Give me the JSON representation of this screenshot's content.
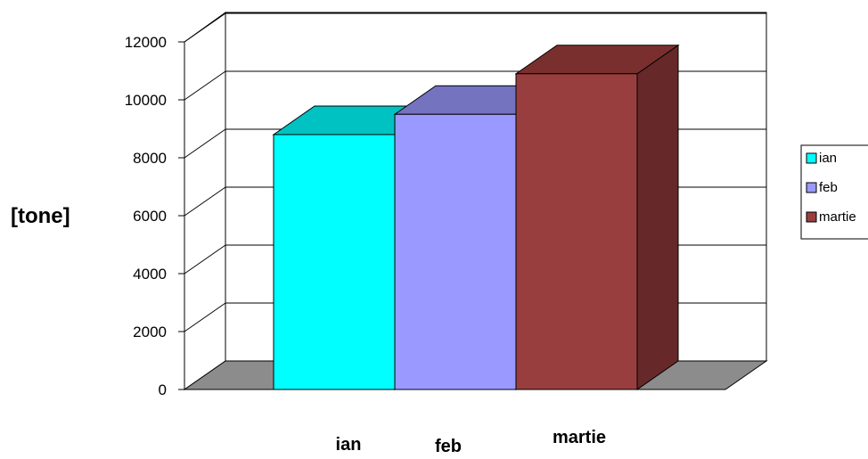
{
  "chart_data": {
    "type": "bar",
    "categories": [
      "ian",
      "feb",
      "martie"
    ],
    "values": [
      8800,
      9500,
      10900
    ],
    "ylabel": "[tone]",
    "ylim": [
      0,
      12000
    ],
    "yticks": [
      "0",
      "2000",
      "4000",
      "6000",
      "8000",
      "10000",
      "12000"
    ],
    "grid": true,
    "legend": {
      "position": "right",
      "entries": [
        "ian",
        "feb",
        "martie"
      ]
    },
    "colors": {
      "front": [
        "#00ffff",
        "#9999ff",
        "#993e3e"
      ],
      "top": [
        "#00c2c2",
        "#7373c0",
        "#7a2f2f"
      ],
      "side": [
        "#009f9f",
        "#5e5ea3",
        "#662828"
      ],
      "floor": "#8c8c8c",
      "wall": "#ffffff"
    }
  }
}
